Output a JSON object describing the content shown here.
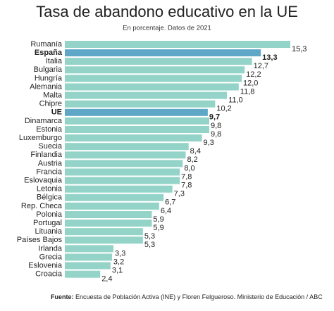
{
  "chart_data": {
    "type": "bar",
    "orientation": "horizontal",
    "title": "Tasa de abandono educativo en la UE",
    "subtitle": "En porcentaje. Datos de 2021",
    "source_label": "Fuente:",
    "source": "Encuesta de Población Activa (INE) y Floren Felgueroso. Ministerio de Educación / ABC",
    "categories": [
      "Rumanía",
      "España",
      "Italia",
      "Bulgaria",
      "Hungría",
      "Alemania",
      "Malta",
      "Chipre",
      "UE",
      "Dinamarca",
      "Estonia",
      "Luxemburgo",
      "Suecia",
      "Finlandia",
      "Austria",
      "Francia",
      "Eslovaquia",
      "Letonia",
      "Bélgica",
      "Rep. Checa",
      "Polonia",
      "Portugal",
      "Lituania",
      "Países Bajos",
      "Irlanda",
      "Grecia",
      "Eslovenia",
      "Croacia"
    ],
    "values": [
      15.3,
      13.3,
      12.7,
      12.2,
      12.0,
      11.8,
      11.0,
      10.2,
      9.7,
      9.8,
      9.8,
      9.3,
      8.4,
      8.2,
      8.0,
      7.8,
      7.8,
      7.3,
      6.7,
      6.4,
      5.9,
      5.9,
      5.3,
      5.3,
      3.3,
      3.2,
      3.1,
      2.4
    ],
    "value_labels": [
      "15,3",
      "13,3",
      "12,7",
      "12,2",
      "12,0",
      "11,8",
      "11,0",
      "10,2",
      "9,7",
      "9,8",
      "9,8",
      "9,3",
      "8,4",
      "8,2",
      "8,0",
      "7,8",
      "7,8",
      "7,3",
      "6,7",
      "6,4",
      "5,9",
      "5,9",
      "5,3",
      "5,3",
      "3,3",
      "3,2",
      "3,1",
      "2,4"
    ],
    "color": "#93d3c8",
    "colors": [
      "#93d3c8",
      "#5fa7c6",
      "#93d3c8",
      "#93d3c8",
      "#93d3c8",
      "#93d3c8",
      "#93d3c8",
      "#93d3c8",
      "#5fa7c6",
      "#93d3c8",
      "#93d3c8",
      "#93d3c8",
      "#93d3c8",
      "#93d3c8",
      "#93d3c8",
      "#93d3c8",
      "#93d3c8",
      "#93d3c8",
      "#93d3c8",
      "#93d3c8",
      "#93d3c8",
      "#93d3c8",
      "#93d3c8",
      "#93d3c8",
      "#93d3c8",
      "#93d3c8",
      "#93d3c8",
      "#93d3c8"
    ]
  }
}
